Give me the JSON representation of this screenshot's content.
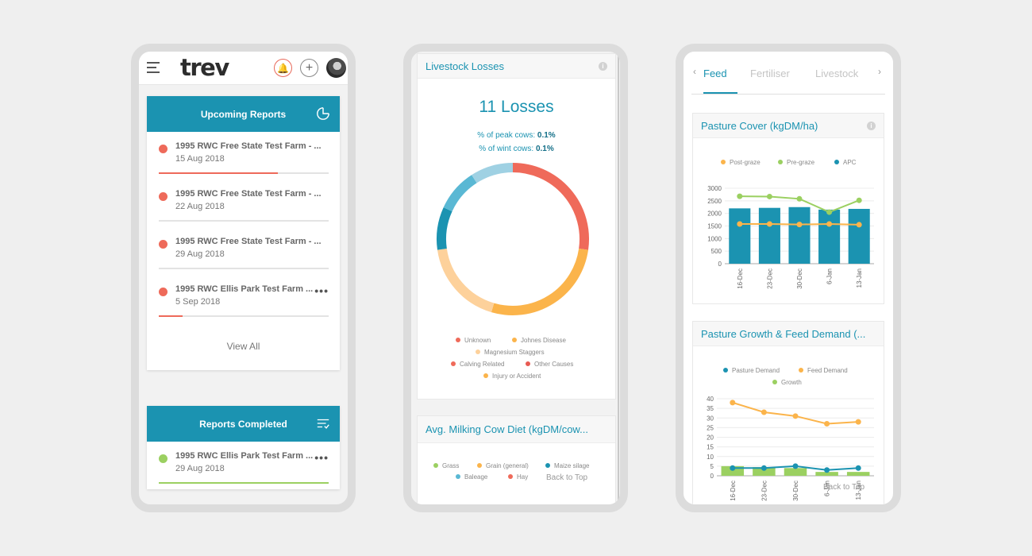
{
  "phone1": {
    "logo": "trev",
    "upcoming": {
      "title": "Upcoming Reports",
      "items": [
        {
          "title": "1995 RWC Free State Test Farm - ...",
          "date": "15 Aug 2018",
          "progress": 0.7,
          "color": "#ee6a5a"
        },
        {
          "title": "1995 RWC Free State Test Farm - ...",
          "date": "22 Aug 2018",
          "progress": 0,
          "color": "#ee6a5a"
        },
        {
          "title": "1995 RWC Free State Test Farm - ...",
          "date": "29 Aug 2018",
          "progress": 0,
          "color": "#ee6a5a"
        },
        {
          "title": "1995 RWC Ellis Park Test Farm ...",
          "date": "5 Sep 2018",
          "progress": 0.14,
          "color": "#ee6a5a",
          "more": "•••"
        }
      ],
      "view_all": "View All"
    },
    "completed": {
      "title": "Reports Completed",
      "items": [
        {
          "title": "1995 RWC Ellis Park Test Farm ...",
          "date": "29 Aug 2018",
          "progress": 1,
          "color": "#9bd061",
          "more": "•••"
        }
      ]
    }
  },
  "phone2": {
    "livestock": {
      "header": "Livestock Losses",
      "losses": "11 Losses",
      "peak_label": "% of peak cows:",
      "peak_value": "0.1%",
      "wint_label": "% of wint cows:",
      "wint_value": "0.1%",
      "legend": [
        {
          "label": "Unknown",
          "color": "#ef6a5a"
        },
        {
          "label": "Johnes Disease",
          "color": "#fbb44b"
        },
        {
          "label": "Magnesium Staggers",
          "color": "#fdd19b"
        },
        {
          "label": "Calving Related",
          "color": "#ef6a5a"
        },
        {
          "label": "Other Causes",
          "color": "#e85a52"
        },
        {
          "label": "Injury or Accident",
          "color": "#fbb44b"
        }
      ]
    },
    "diet": {
      "header": "Avg. Milking Cow Diet (kgDM/cow...",
      "legend": [
        {
          "label": "Grass",
          "color": "#9bd061"
        },
        {
          "label": "Grain (general)",
          "color": "#fbb44b"
        },
        {
          "label": "Maize silage",
          "color": "#1b93b1"
        },
        {
          "label": "Baleage",
          "color": "#5ab8d4"
        },
        {
          "label": "Hay",
          "color": "#ef6a5a"
        }
      ],
      "back_to_top": "Back to Top"
    },
    "chart_data": {
      "type": "pie",
      "title": "11 Losses",
      "series": [
        {
          "name": "Unknown",
          "value": 3,
          "color": "#ef6a5a"
        },
        {
          "name": "Johnes Disease",
          "value": 3,
          "color": "#fbb44b"
        },
        {
          "name": "Magnesium Staggers",
          "value": 2,
          "color": "#fdd19b"
        },
        {
          "name": "Calving Related",
          "value": 1,
          "color": "#1b93b1"
        },
        {
          "name": "Other Causes",
          "value": 1,
          "color": "#5ab8d4"
        },
        {
          "name": "Injury or Accident",
          "value": 1,
          "color": "#9fd1e3"
        }
      ]
    }
  },
  "phone3": {
    "tabs": [
      "Feed",
      "Fertiliser",
      "Livestock"
    ],
    "active_tab": "Feed",
    "pasture_cover": {
      "header": "Pasture Cover (kgDM/ha)",
      "legend": [
        {
          "label": "Post-graze",
          "color": "#fbb44b"
        },
        {
          "label": "Pre-graze",
          "color": "#9bd061"
        },
        {
          "label": "APC",
          "color": "#1b93b1"
        }
      ]
    },
    "pasture_growth": {
      "header": "Pasture Growth & Feed Demand (...",
      "legend": [
        {
          "label": "Pasture Demand",
          "color": "#1b93b1"
        },
        {
          "label": "Feed Demand",
          "color": "#fbb44b"
        },
        {
          "label": "Growth",
          "color": "#9bd061"
        }
      ],
      "back_to_top": "Back to Top"
    },
    "chart_data": [
      {
        "type": "bar",
        "title": "Pasture Cover (kgDM/ha)",
        "categories": [
          "16-Dec",
          "23-Dec",
          "30-Dec",
          "6-Jan",
          "13-Jan"
        ],
        "ylim": [
          0,
          3000
        ],
        "yticks": [
          0,
          500,
          1000,
          1500,
          2000,
          2500,
          3000
        ],
        "series": [
          {
            "name": "APC",
            "kind": "bar",
            "color": "#1b93b1",
            "values": [
              2200,
              2220,
              2250,
              2150,
              2180
            ]
          },
          {
            "name": "Pre-graze",
            "kind": "line",
            "color": "#9bd061",
            "values": [
              2680,
              2670,
              2580,
              2050,
              2520
            ]
          },
          {
            "name": "Post-graze",
            "kind": "line",
            "color": "#fbb44b",
            "values": [
              1580,
              1580,
              1560,
              1580,
              1550
            ]
          }
        ]
      },
      {
        "type": "bar",
        "title": "Pasture Growth & Feed Demand (...",
        "categories": [
          "16-Dec",
          "23-Dec",
          "30-Dec",
          "6-Jan",
          "13-Jan"
        ],
        "ylim": [
          0,
          40
        ],
        "yticks": [
          0,
          5,
          10,
          15,
          20,
          25,
          30,
          35,
          40
        ],
        "series": [
          {
            "name": "Growth",
            "kind": "bar",
            "color": "#9bd061",
            "values": [
              5,
              4.5,
              4,
              2,
              2
            ]
          },
          {
            "name": "Pasture Demand",
            "kind": "line",
            "color": "#1b93b1",
            "values": [
              4,
              4,
              5,
              3,
              4
            ]
          },
          {
            "name": "Feed Demand",
            "kind": "line",
            "color": "#fbb44b",
            "values": [
              38,
              33,
              31,
              27,
              28
            ]
          }
        ]
      }
    ]
  }
}
